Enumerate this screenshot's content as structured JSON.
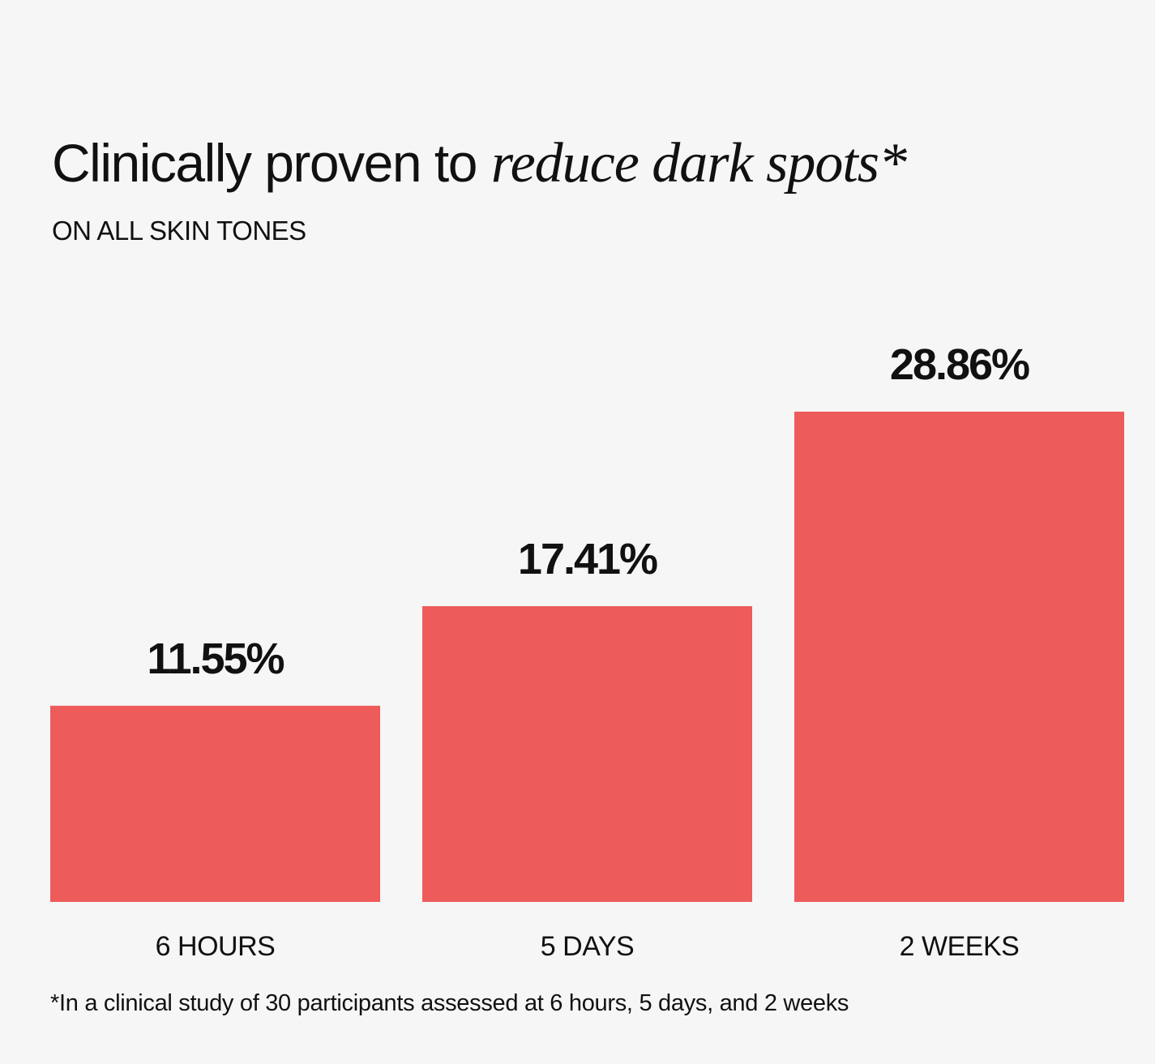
{
  "chart_data": {
    "type": "bar",
    "title": "Clinically proven to",
    "title_emphasis": "reduce dark spots*",
    "subtitle": "ON ALL SKIN TONES",
    "categories": [
      "6 HOURS",
      "5 DAYS",
      "2 WEEKS"
    ],
    "values": [
      11.55,
      17.41,
      28.86
    ],
    "value_labels": [
      "11.55%",
      "17.41%",
      "28.86%"
    ],
    "color": "#ee5b5b",
    "footnote": "*In a clinical study of 30 participants assessed at 6 hours, 5 days, and 2 weeks"
  }
}
